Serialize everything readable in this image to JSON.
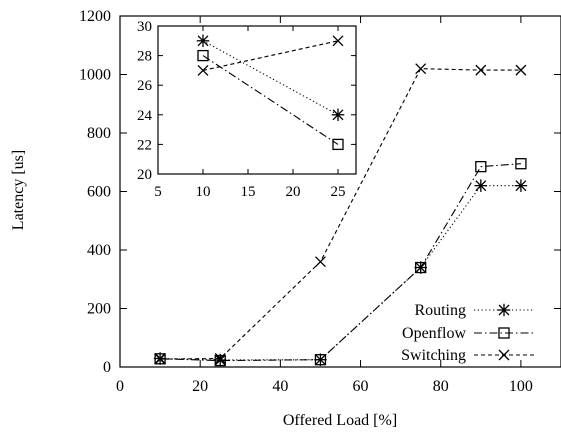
{
  "chart_data": [
    {
      "type": "line",
      "xlabel": "Offered Load [%]",
      "ylabel": "Latency [us]",
      "xlim": [
        0,
        110
      ],
      "ylim": [
        0,
        1200
      ],
      "xticks": [
        0,
        20,
        40,
        60,
        80,
        100
      ],
      "yticks": [
        0,
        200,
        400,
        600,
        800,
        1000,
        1200
      ],
      "legend": "bottom-right",
      "grid": false,
      "series": [
        {
          "name": "Routing",
          "marker": "asterisk",
          "dash": "dotted",
          "x": [
            10,
            25,
            50,
            75,
            90,
            100
          ],
          "y": [
            29,
            24,
            25,
            340,
            620,
            620
          ]
        },
        {
          "name": "Openflow",
          "marker": "square",
          "dash": "dashdot",
          "x": [
            10,
            25,
            50,
            75,
            90,
            100
          ],
          "y": [
            28,
            22,
            25,
            340,
            685,
            695
          ]
        },
        {
          "name": "Switching",
          "marker": "x",
          "dash": "dashed",
          "x": [
            10,
            25,
            50,
            75,
            90,
            100
          ],
          "y": [
            27,
            29,
            360,
            1020,
            1015,
            1015
          ]
        }
      ]
    },
    {
      "type": "line",
      "inset": true,
      "xlim": [
        5,
        27
      ],
      "ylim": [
        20,
        30
      ],
      "xticks": [
        5,
        10,
        15,
        20,
        25
      ],
      "yticks": [
        20,
        22,
        24,
        26,
        28,
        30
      ],
      "grid": false,
      "series": [
        {
          "name": "Routing",
          "marker": "asterisk",
          "dash": "dotted",
          "x": [
            10,
            25
          ],
          "y": [
            29,
            24
          ]
        },
        {
          "name": "Openflow",
          "marker": "square",
          "dash": "dashdot",
          "x": [
            10,
            25
          ],
          "y": [
            28,
            22
          ]
        },
        {
          "name": "Switching",
          "marker": "x",
          "dash": "dashed",
          "x": [
            10,
            25
          ],
          "y": [
            27,
            29
          ]
        }
      ]
    }
  ]
}
